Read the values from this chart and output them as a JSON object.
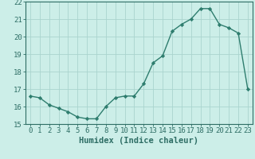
{
  "xlabel": "Humidex (Indice chaleur)",
  "x": [
    0,
    1,
    2,
    3,
    4,
    5,
    6,
    7,
    8,
    9,
    10,
    11,
    12,
    13,
    14,
    15,
    16,
    17,
    18,
    19,
    20,
    21,
    22,
    23
  ],
  "y": [
    16.6,
    16.5,
    16.1,
    15.9,
    15.7,
    15.4,
    15.3,
    15.3,
    16.0,
    16.5,
    16.6,
    16.6,
    17.3,
    18.5,
    18.9,
    20.3,
    20.7,
    21.0,
    21.6,
    21.6,
    20.7,
    20.5,
    20.2,
    17.0
  ],
  "line_color": "#2e7d6e",
  "marker": "D",
  "marker_size": 2.2,
  "bg_color": "#cceee8",
  "grid_color": "#aad4ce",
  "ylim": [
    15,
    22
  ],
  "yticks": [
    15,
    16,
    17,
    18,
    19,
    20,
    21,
    22
  ],
  "xticks": [
    0,
    1,
    2,
    3,
    4,
    5,
    6,
    7,
    8,
    9,
    10,
    11,
    12,
    13,
    14,
    15,
    16,
    17,
    18,
    19,
    20,
    21,
    22,
    23
  ],
  "tick_fontsize": 6.5,
  "label_fontsize": 7.5,
  "linewidth": 1.0,
  "tick_color": "#2e6e65",
  "label_color": "#2e6e65"
}
